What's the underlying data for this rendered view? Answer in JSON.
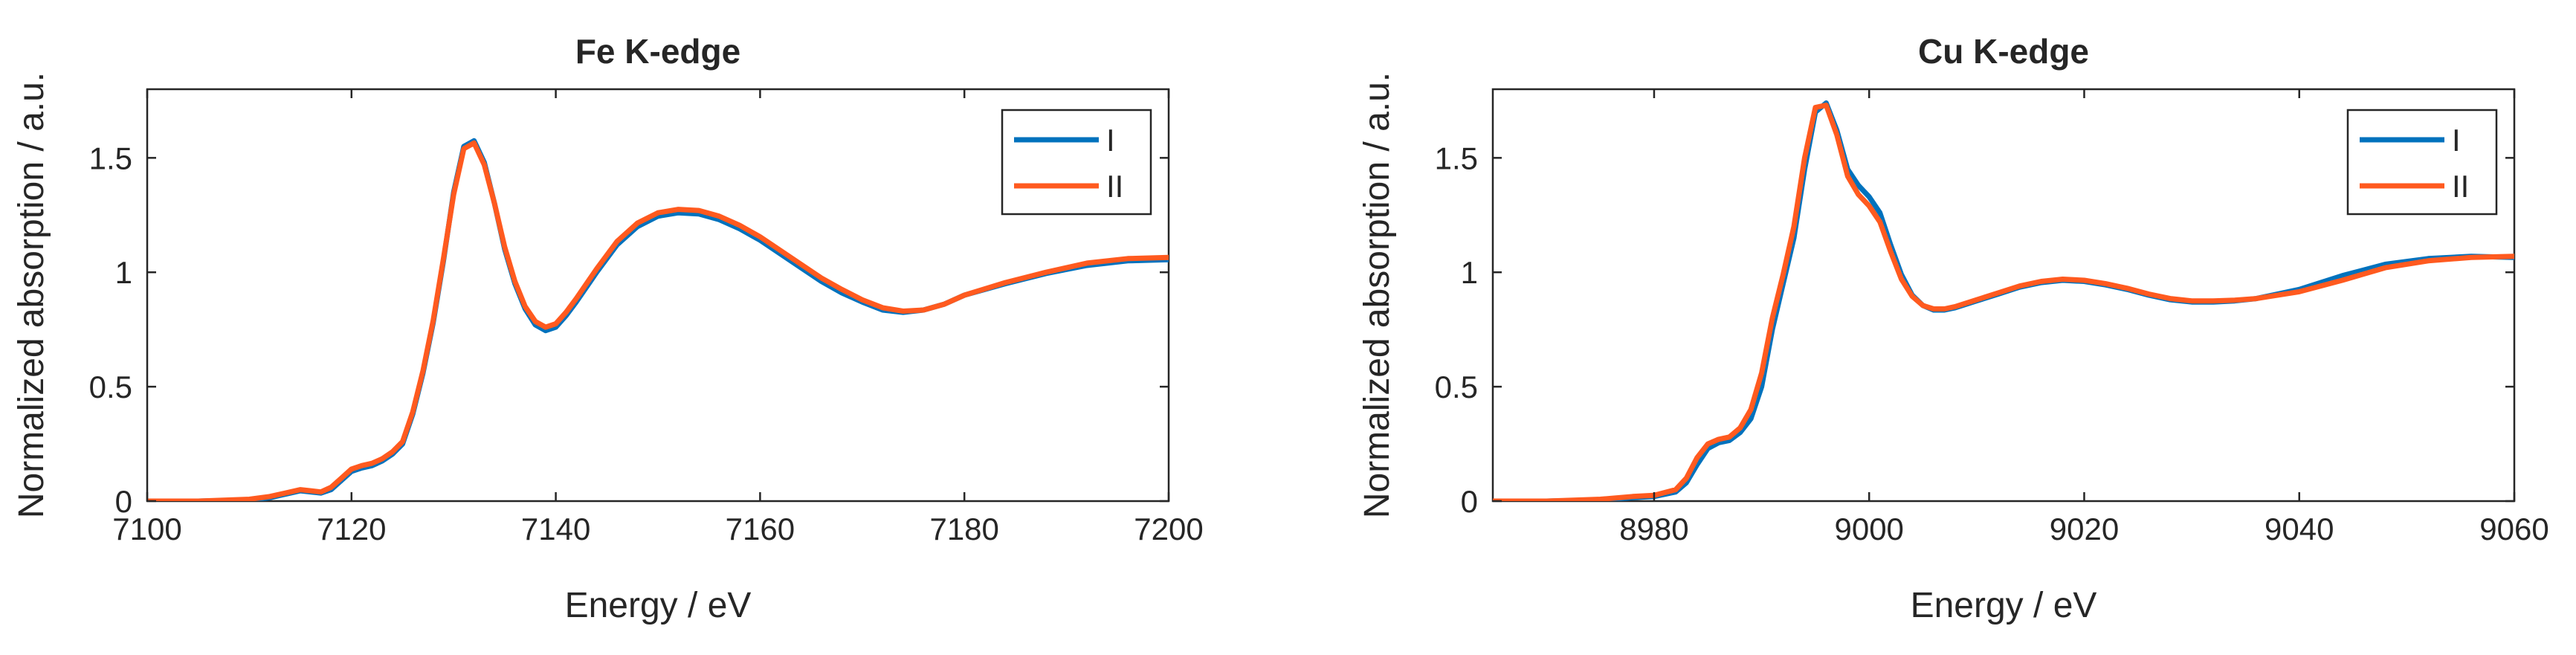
{
  "colors": {
    "I": "#0072BD",
    "II": "#FF5A1F",
    "axis": "#262626"
  },
  "chart_data": [
    {
      "type": "line",
      "title": "Fe K-edge",
      "xlabel": "Energy / eV",
      "ylabel": "Normalized absorption / a.u.",
      "xlim": [
        7100,
        7200
      ],
      "ylim": [
        0,
        1.8
      ],
      "xticks": [
        7100,
        7120,
        7140,
        7160,
        7180,
        7200
      ],
      "yticks": [
        0,
        0.5,
        1,
        1.5
      ],
      "ytick_labels": [
        "0",
        "0.5",
        "1",
        "1.5"
      ],
      "grid": false,
      "legend": "top-right",
      "series": [
        {
          "name": "I",
          "x": [
            7100,
            7105,
            7110,
            7112,
            7114,
            7115,
            7116,
            7117,
            7118,
            7119,
            7120,
            7121,
            7122,
            7123,
            7124,
            7125,
            7126,
            7127,
            7128,
            7129,
            7130,
            7131,
            7132,
            7133,
            7134,
            7135,
            7136,
            7137,
            7138,
            7139,
            7140,
            7141,
            7142,
            7144,
            7146,
            7148,
            7150,
            7152,
            7154,
            7156,
            7158,
            7160,
            7162,
            7164,
            7166,
            7168,
            7170,
            7172,
            7174,
            7176,
            7178,
            7180,
            7184,
            7188,
            7192,
            7196,
            7200
          ],
          "y": [
            0,
            0,
            0.005,
            0.015,
            0.035,
            0.045,
            0.04,
            0.035,
            0.05,
            0.09,
            0.13,
            0.145,
            0.155,
            0.175,
            0.205,
            0.25,
            0.38,
            0.56,
            0.78,
            1.05,
            1.35,
            1.55,
            1.575,
            1.48,
            1.3,
            1.1,
            0.95,
            0.84,
            0.77,
            0.745,
            0.76,
            0.81,
            0.87,
            1.0,
            1.12,
            1.2,
            1.245,
            1.26,
            1.255,
            1.23,
            1.19,
            1.14,
            1.08,
            1.02,
            0.96,
            0.91,
            0.87,
            0.835,
            0.825,
            0.835,
            0.86,
            0.9,
            0.95,
            0.995,
            1.03,
            1.05,
            1.055
          ]
        },
        {
          "name": "II",
          "x": [
            7100,
            7105,
            7110,
            7112,
            7114,
            7115,
            7116,
            7117,
            7118,
            7119,
            7120,
            7121,
            7122,
            7123,
            7124,
            7125,
            7126,
            7127,
            7128,
            7129,
            7130,
            7131,
            7132,
            7133,
            7134,
            7135,
            7136,
            7137,
            7138,
            7139,
            7140,
            7141,
            7142,
            7144,
            7146,
            7148,
            7150,
            7152,
            7154,
            7156,
            7158,
            7160,
            7162,
            7164,
            7166,
            7168,
            7170,
            7172,
            7174,
            7176,
            7178,
            7180,
            7184,
            7188,
            7192,
            7196,
            7200
          ],
          "y": [
            0,
            0,
            0.008,
            0.02,
            0.04,
            0.05,
            0.045,
            0.04,
            0.06,
            0.1,
            0.14,
            0.155,
            0.165,
            0.185,
            0.215,
            0.26,
            0.39,
            0.57,
            0.79,
            1.06,
            1.34,
            1.54,
            1.565,
            1.47,
            1.3,
            1.11,
            0.96,
            0.85,
            0.785,
            0.76,
            0.775,
            0.825,
            0.885,
            1.015,
            1.135,
            1.215,
            1.26,
            1.275,
            1.27,
            1.245,
            1.205,
            1.155,
            1.095,
            1.035,
            0.975,
            0.925,
            0.88,
            0.845,
            0.83,
            0.835,
            0.86,
            0.9,
            0.955,
            1.0,
            1.04,
            1.06,
            1.065
          ]
        }
      ]
    },
    {
      "type": "line",
      "title": "Cu K-edge",
      "xlabel": "Energy / eV",
      "ylabel": "Normalized absorption / a.u.",
      "xlim": [
        8965,
        9060
      ],
      "ylim": [
        0,
        1.8
      ],
      "xticks": [
        8980,
        9000,
        9020,
        9040,
        9060
      ],
      "yticks": [
        0,
        0.5,
        1,
        1.5
      ],
      "ytick_labels": [
        "0",
        "0.5",
        "1",
        "1.5"
      ],
      "grid": false,
      "legend": "top-right",
      "series": [
        {
          "name": "I",
          "x": [
            8965,
            8970,
            8975,
            8978,
            8980,
            8982,
            8983,
            8984,
            8985,
            8986,
            8987,
            8988,
            8989,
            8990,
            8991,
            8992,
            8993,
            8994,
            8995,
            8996,
            8997,
            8998,
            8999,
            9000,
            9001,
            9002,
            9003,
            9004,
            9005,
            9006,
            9007,
            9008,
            9010,
            9012,
            9014,
            9016,
            9018,
            9020,
            9022,
            9024,
            9026,
            9028,
            9030,
            9032,
            9034,
            9036,
            9040,
            9044,
            9048,
            9052,
            9056,
            9060
          ],
          "y": [
            0,
            0,
            0.005,
            0.015,
            0.02,
            0.04,
            0.08,
            0.16,
            0.23,
            0.255,
            0.265,
            0.3,
            0.36,
            0.5,
            0.75,
            0.95,
            1.15,
            1.45,
            1.7,
            1.74,
            1.62,
            1.45,
            1.38,
            1.33,
            1.26,
            1.12,
            0.99,
            0.9,
            0.855,
            0.835,
            0.835,
            0.845,
            0.875,
            0.905,
            0.935,
            0.955,
            0.965,
            0.96,
            0.945,
            0.925,
            0.9,
            0.88,
            0.87,
            0.87,
            0.875,
            0.885,
            0.925,
            0.985,
            1.035,
            1.06,
            1.07,
            1.065
          ]
        },
        {
          "name": "II",
          "x": [
            8965,
            8970,
            8975,
            8978,
            8980,
            8982,
            8983,
            8984,
            8985,
            8986,
            8987,
            8988,
            8989,
            8990,
            8991,
            8992,
            8993,
            8994,
            8995,
            8996,
            8997,
            8998,
            8999,
            9000,
            9001,
            9002,
            9003,
            9004,
            9005,
            9006,
            9007,
            9008,
            9010,
            9012,
            9014,
            9016,
            9018,
            9020,
            9022,
            9024,
            9026,
            9028,
            9030,
            9032,
            9034,
            9036,
            9040,
            9044,
            9048,
            9052,
            9056,
            9060
          ],
          "y": [
            0,
            0,
            0.008,
            0.02,
            0.025,
            0.05,
            0.1,
            0.19,
            0.25,
            0.27,
            0.28,
            0.32,
            0.4,
            0.56,
            0.8,
            0.99,
            1.2,
            1.5,
            1.72,
            1.73,
            1.6,
            1.42,
            1.34,
            1.29,
            1.22,
            1.09,
            0.97,
            0.895,
            0.855,
            0.84,
            0.84,
            0.85,
            0.88,
            0.91,
            0.94,
            0.96,
            0.97,
            0.965,
            0.95,
            0.93,
            0.905,
            0.885,
            0.875,
            0.875,
            0.878,
            0.885,
            0.915,
            0.965,
            1.02,
            1.05,
            1.065,
            1.07
          ]
        }
      ]
    }
  ]
}
